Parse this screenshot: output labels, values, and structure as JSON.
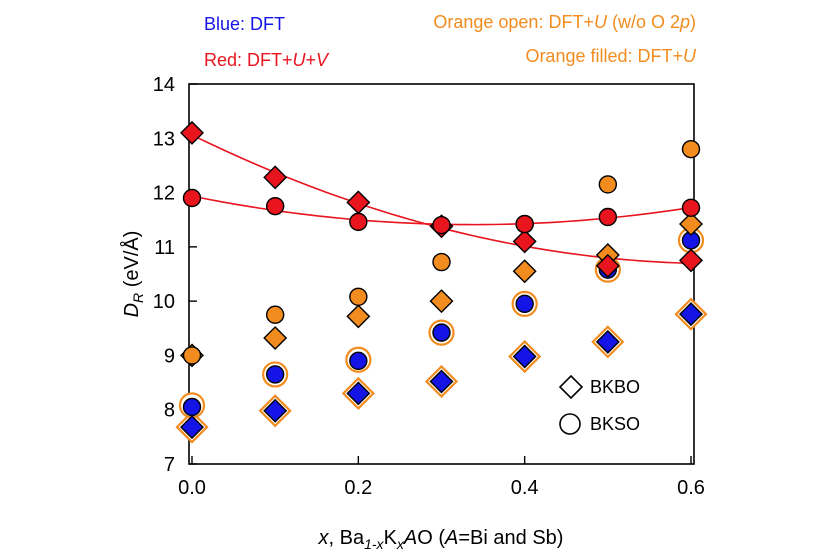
{
  "chart_data": {
    "type": "scatter",
    "xlabel": {
      "prefix": "x",
      "mid1": ", Ba",
      "sub1": "1-x",
      "mid2": "K",
      "sub2": "x",
      "mid3": "A",
      "mid4": "O (",
      "mid5": "A",
      "suffix": "=Bi and Sb)"
    },
    "ylabel": {
      "main": "D",
      "sub": "R",
      "unit": " (eV/Å)"
    },
    "xlim": [
      0,
      0.6
    ],
    "ylim": [
      7,
      14
    ],
    "x_ticks": [
      "0.0",
      "0.2",
      "0.4",
      "0.6"
    ],
    "x_tick_values": [
      0.0,
      0.2,
      0.4,
      0.6
    ],
    "y_ticks": [
      "7",
      "8",
      "9",
      "10",
      "11",
      "12",
      "13",
      "14"
    ],
    "y_tick_values": [
      7,
      8,
      9,
      10,
      11,
      12,
      13,
      14
    ],
    "annotations": {
      "blue": "Blue: DFT",
      "red_prefix": "Red: DFT+",
      "red_u": "U",
      "red_plus": "+",
      "red_v": "V",
      "orange_open_prefix": "Orange open: DFT+",
      "orange_open_u": "U",
      "orange_open_mid": " (w/o O 2",
      "orange_open_p": "p",
      "orange_open_end": ")",
      "orange_filled_prefix": "Orange filled: DFT+",
      "orange_filled_u": "U"
    },
    "legend": {
      "placement": "bottom-right",
      "entries": [
        {
          "label": "BKBO",
          "marker": "diamond"
        },
        {
          "label": "BKSO",
          "marker": "circle"
        }
      ]
    },
    "colors": {
      "blue": "#1414e6",
      "red": "#e8141e",
      "orange": "#f28c1e",
      "black": "#000000"
    },
    "x": [
      0.0,
      0.1,
      0.2,
      0.3,
      0.4,
      0.5,
      0.6
    ],
    "series": [
      {
        "method": "DFT",
        "material": "BKBO",
        "marker": "diamond",
        "style": "blue-orange-ring",
        "values": [
          7.68,
          7.98,
          8.3,
          8.52,
          8.98,
          9.25,
          9.76
        ]
      },
      {
        "method": "DFT",
        "material": "BKSO",
        "marker": "circle",
        "style": "blue-orange-ring",
        "values": [
          8.05,
          8.65,
          8.9,
          9.42,
          9.95,
          10.58,
          11.12
        ]
      },
      {
        "method": "DFT+U (w/o O 2p)",
        "material": "BKBO",
        "marker": "diamond",
        "style": "orange-open",
        "values": [
          7.68,
          7.98,
          8.3,
          8.52,
          8.98,
          9.25,
          9.76
        ]
      },
      {
        "method": "DFT+U (w/o O 2p)",
        "material": "BKSO",
        "marker": "circle",
        "style": "orange-open",
        "values": [
          8.08,
          8.65,
          8.92,
          9.42,
          9.95,
          10.58,
          11.12
        ]
      },
      {
        "method": "DFT+U",
        "material": "BKBO",
        "marker": "diamond",
        "style": "orange-filled",
        "values": [
          9.0,
          9.32,
          9.72,
          10.0,
          10.55,
          10.85,
          11.42
        ]
      },
      {
        "method": "DFT+U",
        "material": "BKSO",
        "marker": "circle",
        "style": "orange-filled",
        "values": [
          9.0,
          9.75,
          10.08,
          10.72,
          11.42,
          12.15,
          12.8
        ]
      },
      {
        "method": "DFT+U+V",
        "material": "BKBO",
        "marker": "diamond",
        "style": "red-filled",
        "values": [
          13.1,
          12.28,
          11.82,
          11.38,
          11.1,
          10.65,
          10.75
        ]
      },
      {
        "method": "DFT+U+V",
        "material": "BKSO",
        "marker": "circle",
        "style": "red-filled",
        "values": [
          11.9,
          11.75,
          11.46,
          11.4,
          11.42,
          11.55,
          11.72
        ]
      }
    ]
  }
}
